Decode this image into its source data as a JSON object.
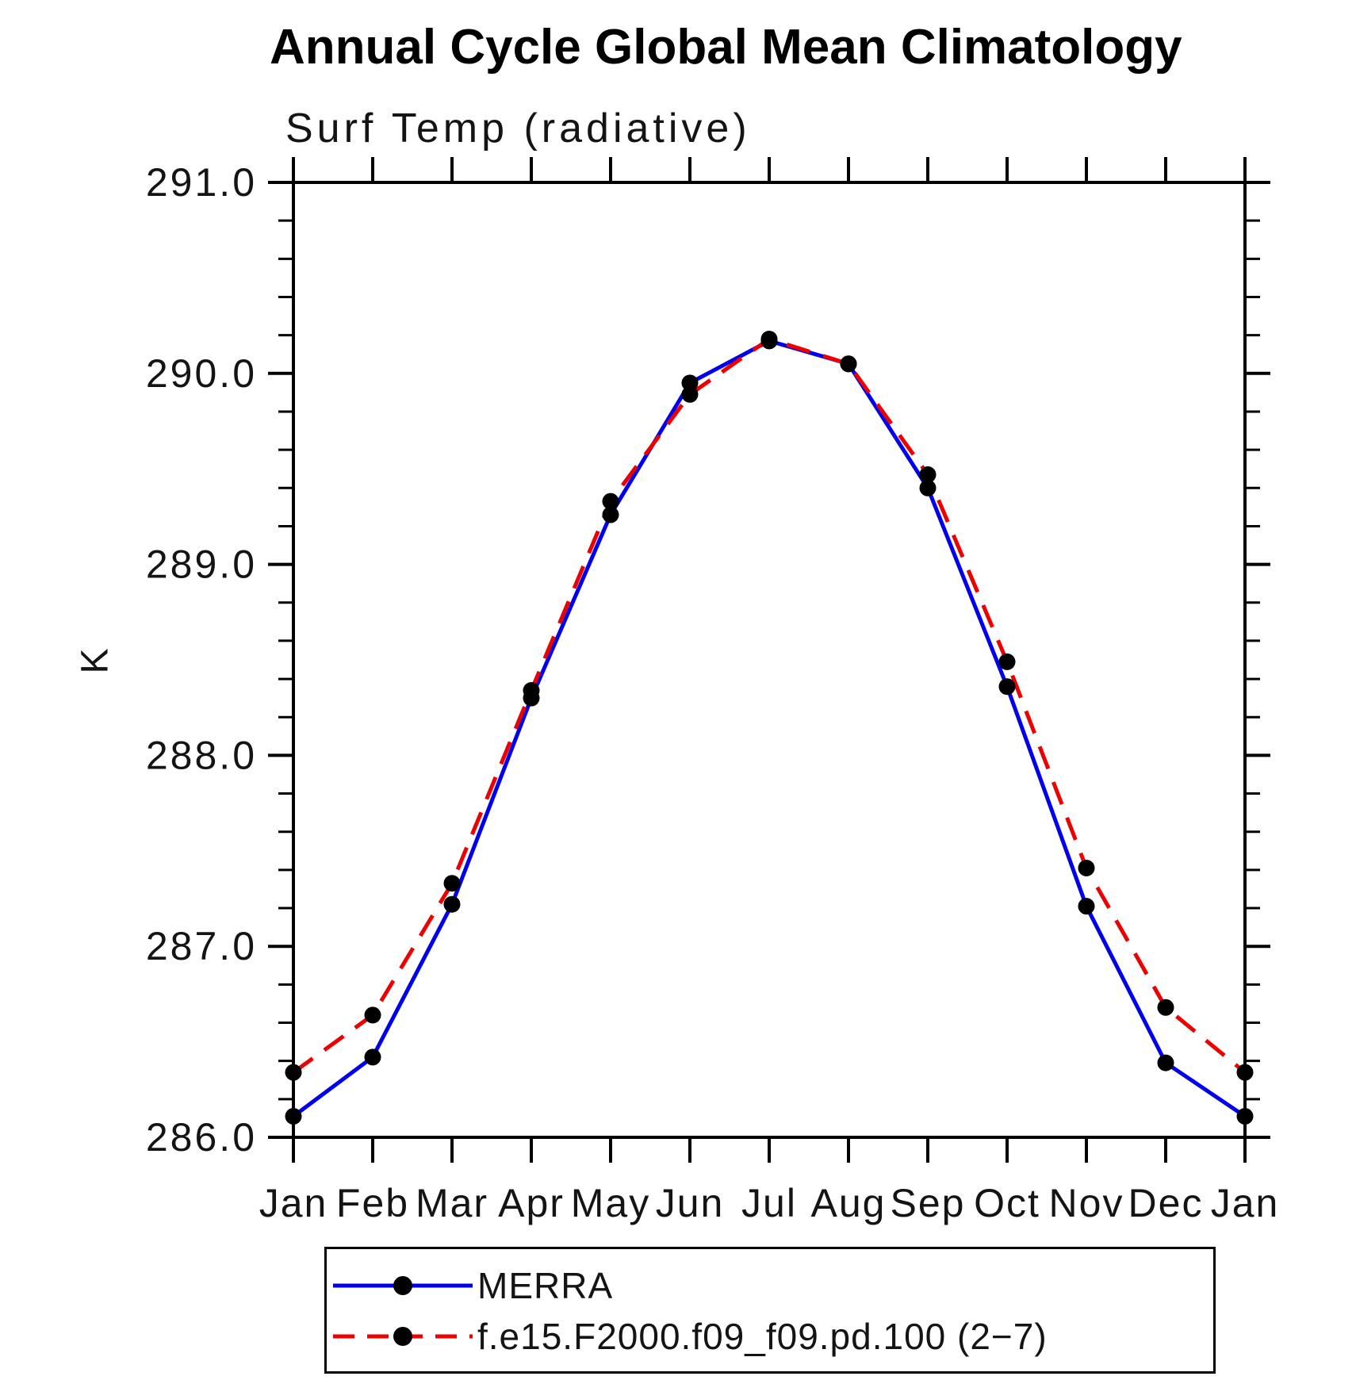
{
  "chart_data": {
    "type": "line",
    "title": "Annual Cycle Global Mean Climatology",
    "subtitle": "Surf Temp (radiative)",
    "ylabel": "K",
    "xlabel": "",
    "categories": [
      "Jan",
      "Feb",
      "Mar",
      "Apr",
      "May",
      "Jun",
      "Jul",
      "Aug",
      "Sep",
      "Oct",
      "Nov",
      "Dec",
      "Jan"
    ],
    "ylim": [
      286.0,
      291.0
    ],
    "ytick_labels": [
      "286.0",
      "287.0",
      "288.0",
      "289.0",
      "290.0",
      "291.0"
    ],
    "ytick_interval": 1.0,
    "yminor_interval": 0.2,
    "grid": false,
    "legend_position": "bottom",
    "frame_color": "#000000",
    "marker_color": "#000000",
    "series": [
      {
        "name": "MERRA",
        "color": "#0000ee",
        "style": "solid",
        "marker": "circle",
        "values": [
          286.11,
          286.42,
          287.22,
          288.3,
          289.26,
          289.95,
          290.17,
          290.05,
          289.4,
          288.36,
          287.21,
          286.39,
          286.11
        ]
      },
      {
        "name": "f.e15.F2000.f09_f09.pd.100 (2−7)",
        "color": "#ee0000",
        "style": "dashed",
        "marker": "circle",
        "values": [
          286.34,
          286.64,
          287.33,
          288.34,
          289.33,
          289.89,
          290.18,
          290.05,
          289.47,
          288.49,
          287.41,
          286.68,
          286.34
        ]
      }
    ]
  }
}
